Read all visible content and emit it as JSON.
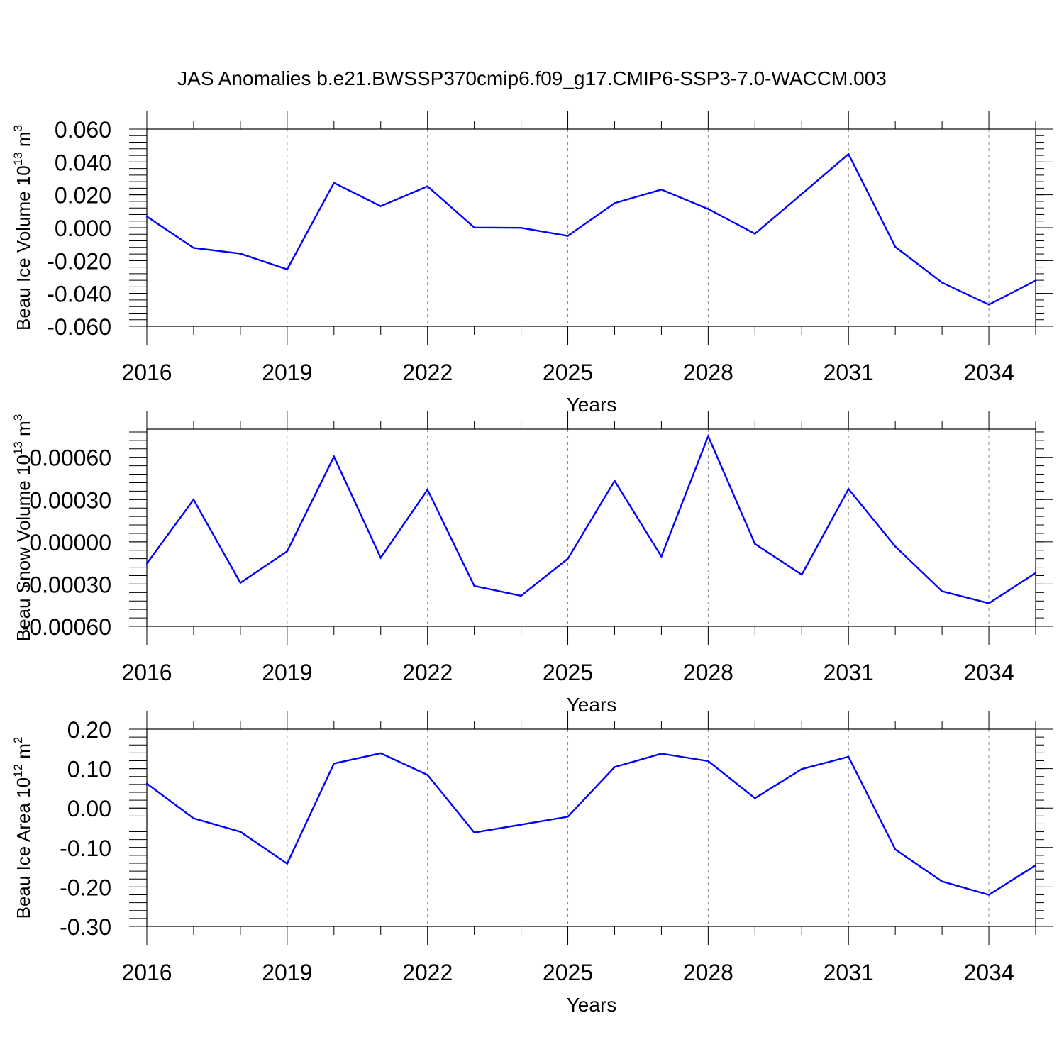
{
  "title": "JAS Anomalies b.e21.BWSSP370cmip6.f09_g17.CMIP6-SSP3-7.0-WACCM.003",
  "colors": {
    "line": "#0000ff",
    "axis": "#000000",
    "grid": "#888888"
  },
  "chart_data": [
    {
      "type": "line",
      "name": "ice-volume",
      "title": "JAS Anomalies b.e21.BWSSP370cmip6.f09_g17.CMIP6-SSP3-7.0-WACCM.003",
      "ylabel_main": "Beau Ice Volume 10",
      "ylabel_exp": "13",
      "ylabel_unit": " m",
      "ylabel_unit_exp": "3",
      "xlabel": "Years",
      "ylim": [
        -0.06,
        0.06
      ],
      "yticks": [
        -0.06,
        -0.04,
        -0.02,
        0.0,
        0.02,
        0.04,
        0.06
      ],
      "ytick_labels": [
        "-0.060",
        "-0.040",
        "-0.020",
        "0.000",
        "0.020",
        "0.040",
        "0.060"
      ],
      "xticks": [
        2016,
        2019,
        2022,
        2025,
        2028,
        2031,
        2034
      ],
      "xlim": [
        2016,
        2035
      ],
      "grid": "vertical dashed at major x ticks",
      "series": [
        {
          "name": "ice volume anomaly",
          "x": [
            2016,
            2017,
            2018,
            2019,
            2020,
            2021,
            2022,
            2023,
            2024,
            2025,
            2026,
            2027,
            2028,
            2029,
            2030,
            2031,
            2032,
            2033,
            2034,
            2035
          ],
          "values": [
            0.0068,
            -0.0123,
            -0.0158,
            -0.0254,
            0.0273,
            0.0131,
            0.0252,
            0.0001,
            -0.0001,
            -0.005,
            0.015,
            0.0232,
            0.0114,
            -0.0037,
            0.0205,
            0.0448,
            -0.0117,
            -0.0334,
            -0.0468,
            -0.0322
          ]
        }
      ]
    },
    {
      "type": "line",
      "name": "snow-volume",
      "ylabel_main": "Beau Snow Volume 10",
      "ylabel_exp": "13",
      "ylabel_unit": " m",
      "ylabel_unit_exp": "3",
      "xlabel": "Years",
      "ylim": [
        -0.0006,
        0.0008
      ],
      "yticks": [
        -0.0006,
        -0.0003,
        0.0,
        0.0003,
        0.0006
      ],
      "ytick_labels": [
        "-0.00060",
        "-0.00030",
        "0.00000",
        "0.00030",
        "0.00060"
      ],
      "xticks": [
        2016,
        2019,
        2022,
        2025,
        2028,
        2031,
        2034
      ],
      "xlim": [
        2016,
        2035
      ],
      "grid": "vertical dashed at major x ticks",
      "series": [
        {
          "name": "snow volume anomaly",
          "x": [
            2016,
            2017,
            2018,
            2019,
            2020,
            2021,
            2022,
            2023,
            2024,
            2025,
            2026,
            2027,
            2028,
            2029,
            2030,
            2031,
            2032,
            2033,
            2034,
            2035
          ],
          "values": [
            -0.000154,
            0.0003,
            -0.000291,
            -6.7e-05,
            0.000605,
            -0.000113,
            0.00037,
            -0.000313,
            -0.000383,
            -0.00012,
            0.000433,
            -0.000104,
            0.00075,
            -1.5e-05,
            -0.000233,
            0.000375,
            -3.3e-05,
            -0.000351,
            -0.000436,
            -0.000221
          ]
        }
      ]
    },
    {
      "type": "line",
      "name": "ice-area",
      "ylabel_main": "Beau Ice Area 10",
      "ylabel_exp": "12",
      "ylabel_unit": " m",
      "ylabel_unit_exp": "2",
      "xlabel": "Years",
      "ylim": [
        -0.3,
        0.2
      ],
      "yticks": [
        -0.3,
        -0.2,
        -0.1,
        0.0,
        0.1,
        0.2
      ],
      "ytick_labels": [
        "-0.30",
        "-0.20",
        "-0.10",
        "0.00",
        "0.10",
        "0.20"
      ],
      "xticks": [
        2016,
        2019,
        2022,
        2025,
        2028,
        2031,
        2034
      ],
      "xlim": [
        2016,
        2035
      ],
      "grid": "vertical dashed at major x ticks",
      "series": [
        {
          "name": "ice area anomaly",
          "x": [
            2016,
            2017,
            2018,
            2019,
            2020,
            2021,
            2022,
            2023,
            2024,
            2025,
            2026,
            2027,
            2028,
            2029,
            2030,
            2031,
            2032,
            2033,
            2034,
            2035
          ],
          "values": [
            0.062,
            -0.026,
            -0.06,
            -0.141,
            0.113,
            0.139,
            0.084,
            -0.062,
            -0.042,
            -0.022,
            0.104,
            0.138,
            0.119,
            0.025,
            0.099,
            0.13,
            -0.105,
            -0.186,
            -0.22,
            -0.145
          ]
        }
      ]
    }
  ]
}
